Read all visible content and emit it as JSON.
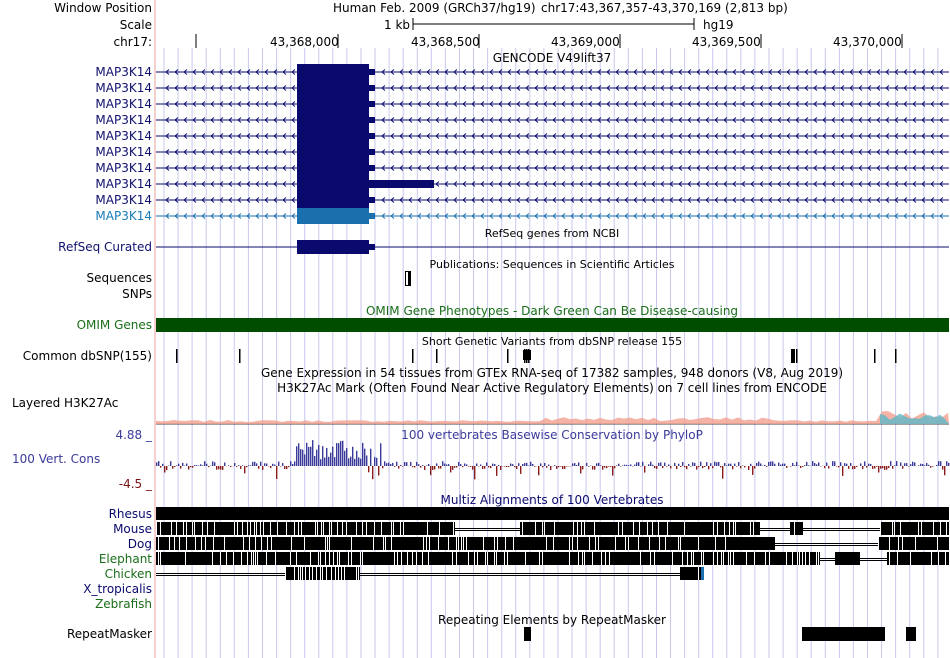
{
  "colors": {
    "gene": "#0a0a6e",
    "gene_selected": "#1a6fad",
    "gene_label": "#11116e",
    "gene_label_selected": "#1a7cb8",
    "omim": "#004d00",
    "omim_label": "#1a6e1a",
    "cons_label": "#3a3a9a",
    "cons_min": "#7a1414",
    "species_blue": "#0a0a6e",
    "species_green": "#1a6e1a",
    "grid": "#c9c9ee",
    "gutter_line": "#e8a0a0"
  },
  "header": {
    "window_position_label": "Window Position",
    "scale_label": "Scale",
    "chrom_label": "chr17:",
    "assembly_text": "Human Feb. 2009 (GRCh37/hg19)",
    "position_text": "chr17:43,367,357-43,370,169 (2,813 bp)",
    "scale_text": "1 kb",
    "scale_db": "hg19",
    "ticks": [
      "43,368,000",
      "43,368,500",
      "43,369,000",
      "43,369,500",
      "43,370,000"
    ]
  },
  "gencode": {
    "title": "GENCODE V49lift37",
    "transcripts": [
      "MAP3K14",
      "MAP3K14",
      "MAP3K14",
      "MAP3K14",
      "MAP3K14",
      "MAP3K14",
      "MAP3K14",
      "MAP3K14",
      "MAP3K14",
      "MAP3K14"
    ]
  },
  "refseq": {
    "title": "RefSeq genes from NCBI",
    "label": "RefSeq Curated"
  },
  "publications": {
    "title": "Publications: Sequences in Scientific Articles",
    "label_sequences": "Sequences",
    "label_snps": "SNPs"
  },
  "omim": {
    "title": "OMIM Gene Phenotypes - Dark Green Can Be Disease-causing",
    "label": "OMIM Genes"
  },
  "dbsnp": {
    "title": "Short Genetic Variants from dbSNP release 155",
    "label": "Common dbSNP(155)"
  },
  "gtex": {
    "title": "Gene Expression in 54 tissues from GTEx RNA-seq of 17382 samples, 948 donors (V8, Aug 2019)"
  },
  "h3k27ac": {
    "title": "H3K27Ac Mark (Often Found Near Active Regulatory Elements) on 7 cell lines from ENCODE",
    "label": "Layered H3K27Ac"
  },
  "conservation": {
    "title": "100 vertebrates Basewise Conservation by PhyloP",
    "label": "100 Vert. Cons",
    "max_label": "4.88 _",
    "min_label": "-4.5 _"
  },
  "multiz": {
    "title": "Multiz Alignments of 100 Vertebrates",
    "species": [
      {
        "name": "Rhesus",
        "color": "blue"
      },
      {
        "name": "Mouse",
        "color": "blue"
      },
      {
        "name": "Dog",
        "color": "blue"
      },
      {
        "name": "Elephant",
        "color": "green"
      },
      {
        "name": "Chicken",
        "color": "green"
      },
      {
        "name": "X_tropicalis",
        "color": "blue"
      },
      {
        "name": "Zebrafish",
        "color": "green"
      }
    ]
  },
  "repeatmasker": {
    "title": "Repeating Elements by RepeatMasker",
    "label": "RepeatMasker"
  }
}
